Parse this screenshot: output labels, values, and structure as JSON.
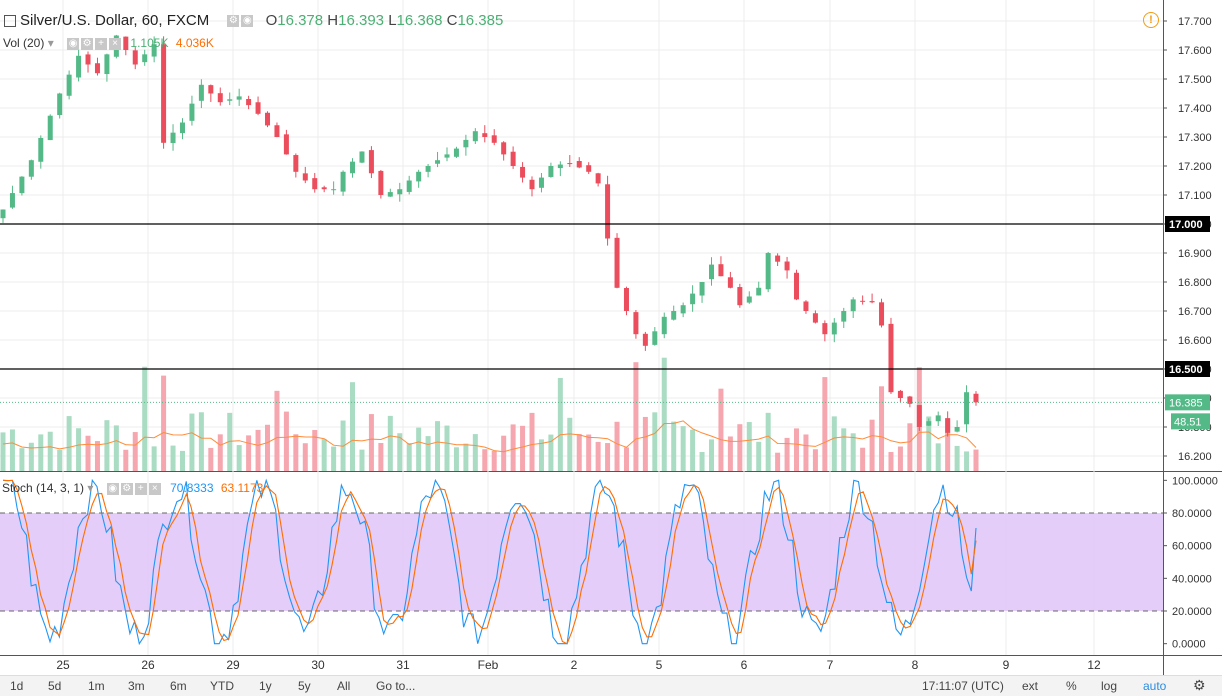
{
  "header": {
    "symbol": "Silver/U.S. Dollar, 60, FXCM",
    "o_label": "O",
    "o": "16.378",
    "h_label": "H",
    "h": "16.393",
    "l_label": "L",
    "l": "16.368",
    "c_label": "C",
    "c": "16.385"
  },
  "volume_header": {
    "label": "Vol (20)",
    "v1": "1.105K",
    "v2": "4.036K"
  },
  "stoch_header": {
    "label": "Stoch (14, 3, 1)",
    "k": "70.8333",
    "d": "63.1173"
  },
  "price_labels": {
    "last": "16.385",
    "line_17": "17.000",
    "line_165": "16.500",
    "vol_tag": "48.51"
  },
  "bottom_bar": {
    "ranges": [
      "1d",
      "5d",
      "1m",
      "3m",
      "6m",
      "YTD",
      "1y",
      "5y",
      "All"
    ],
    "goto": "Go to...",
    "time": "17:11:07 (UTC)",
    "ext": "ext",
    "pct": "%",
    "log": "log",
    "auto": "auto"
  },
  "colors": {
    "up": "#53b987",
    "down": "#eb4d5c",
    "stoch_k": "#2196f3",
    "stoch_d": "#ff6d00",
    "band": "#e1c8f7",
    "vol_up": "#a9dcc3",
    "vol_down": "#f5a6ae"
  },
  "chart_data": [
    {
      "type": "candlestick",
      "title": "Silver/U.S. Dollar, 60, FXCM",
      "x_tick_labels": [
        "25",
        "26",
        "29",
        "30",
        "31",
        "Feb",
        "2",
        "5",
        "6",
        "7",
        "8",
        "9",
        "12"
      ],
      "y_ticks": [
        16.2,
        16.3,
        16.4,
        16.5,
        16.6,
        16.7,
        16.8,
        16.9,
        17.0,
        17.1,
        17.2,
        17.3,
        17.4,
        17.5,
        17.6,
        17.7
      ],
      "y_tick_labels": [
        "16.200",
        "16.300",
        "16.400",
        "16.500",
        "16.600",
        "16.700",
        "16.800",
        "16.900",
        "17.000",
        "17.100",
        "17.200",
        "17.300",
        "17.400",
        "17.500",
        "17.600",
        "17.700"
      ],
      "ylim": [
        16.15,
        17.73
      ],
      "horizontal_lines": [
        17.0,
        16.5
      ],
      "last_price": 16.385,
      "close_path": [
        [
          0,
          17.05
        ],
        [
          3,
          17.22
        ],
        [
          6,
          17.45
        ],
        [
          8,
          17.58
        ],
        [
          10,
          17.52
        ],
        [
          12,
          17.65
        ],
        [
          14,
          17.55
        ],
        [
          16,
          17.62
        ],
        [
          17,
          17.28
        ],
        [
          19,
          17.35
        ],
        [
          21,
          17.48
        ],
        [
          23,
          17.42
        ],
        [
          25,
          17.44
        ],
        [
          27,
          17.38
        ],
        [
          29,
          17.3
        ],
        [
          31,
          17.18
        ],
        [
          33,
          17.12
        ],
        [
          35,
          17.12
        ],
        [
          36,
          17.18
        ],
        [
          38,
          17.25
        ],
        [
          40,
          17.1
        ],
        [
          42,
          17.12
        ],
        [
          44,
          17.18
        ],
        [
          46,
          17.22
        ],
        [
          48,
          17.26
        ],
        [
          50,
          17.32
        ],
        [
          52,
          17.28
        ],
        [
          54,
          17.2
        ],
        [
          56,
          17.12
        ],
        [
          58,
          17.2
        ],
        [
          60,
          17.21
        ],
        [
          62,
          17.18
        ],
        [
          63,
          17.14
        ],
        [
          64,
          16.95
        ],
        [
          65,
          16.78
        ],
        [
          67,
          16.62
        ],
        [
          68,
          16.58
        ],
        [
          70,
          16.68
        ],
        [
          72,
          16.72
        ],
        [
          74,
          16.8
        ],
        [
          75,
          16.86
        ],
        [
          77,
          16.78
        ],
        [
          78,
          16.72
        ],
        [
          80,
          16.78
        ],
        [
          81,
          16.9
        ],
        [
          83,
          16.84
        ],
        [
          84,
          16.74
        ],
        [
          86,
          16.66
        ],
        [
          87,
          16.62
        ],
        [
          89,
          16.7
        ],
        [
          90,
          16.74
        ],
        [
          92,
          16.73
        ],
        [
          93,
          16.65
        ],
        [
          94,
          16.42
        ],
        [
          96,
          16.38
        ],
        [
          97,
          16.3
        ],
        [
          99,
          16.34
        ],
        [
          100,
          16.28
        ],
        [
          101,
          16.3
        ],
        [
          102,
          16.42
        ],
        [
          103,
          16.385
        ]
      ],
      "x_count": 104
    },
    {
      "type": "bar",
      "title": "Vol (20)",
      "values_note": "volume",
      "ma_label": "4.036K",
      "last": "1.105K"
    },
    {
      "type": "line",
      "title": "Stoch (14, 3, 1)",
      "series": [
        {
          "name": "%K",
          "last": 70.8333
        },
        {
          "name": "%D",
          "last": 63.1173
        }
      ],
      "y_ticks": [
        0,
        20,
        40,
        60,
        80,
        100
      ],
      "y_tick_labels": [
        "0.0000",
        "20.0000",
        "40.0000",
        "60.0000",
        "80.0000",
        "100.0000"
      ],
      "band": [
        20,
        80
      ],
      "ylim": [
        -5,
        102
      ]
    }
  ]
}
